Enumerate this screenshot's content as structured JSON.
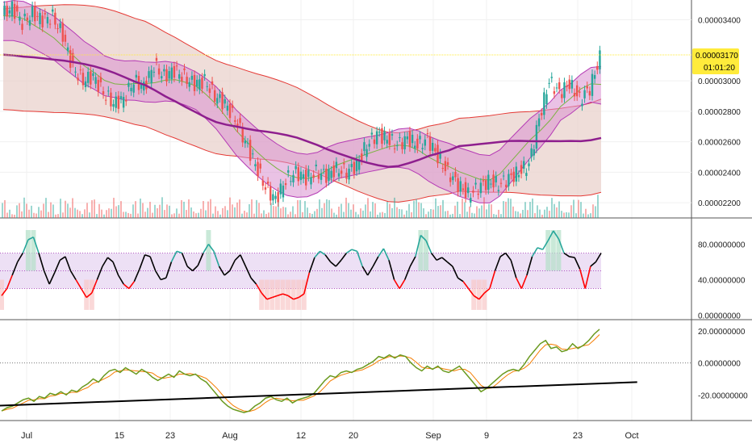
{
  "colors": {
    "up": "#26a69a",
    "down": "#ef5350",
    "ma_purple": "#8e1f8e",
    "bb_outer": "#e53935",
    "bb_outer_fill": "#e8cfc9",
    "bb_inner": "#b53bb5",
    "bb_inner_fill": "#d98fd0",
    "mid_green": "#7cb342",
    "price_line": "#ffeb3b",
    "osc_line": "#000000",
    "osc_low": "#ff0000",
    "osc_high": "#26a69a",
    "osc_band_fill": "#ede0f5",
    "osc_band_line": "#9c27b0",
    "osc_high_highlight": "#b2dfc8",
    "osc_low_highlight": "#f8c8c8",
    "wave_line": "#6a9a1f",
    "wave_signal": "#f57c00",
    "trendline": "#000000",
    "badge": "#ffeb3b",
    "grid": "#f0f0f0",
    "axis_text": "#222222"
  },
  "price_badge": {
    "price": "0.00003170",
    "countdown": "01:01:20"
  },
  "x_axis": {
    "labels": [
      "Jul",
      "15",
      "23",
      "Aug",
      "12",
      "20",
      "Sep",
      "9",
      "23",
      "Oct"
    ]
  },
  "chart_data": [
    {
      "type": "candlestick",
      "pane": "price",
      "ylim": [
        2.1e-05,
        3.53e-05
      ],
      "y_ticks": [
        "0.00003400",
        "0.00003000",
        "0.00002800",
        "0.00002600",
        "0.00002400",
        "0.00002200"
      ],
      "x_range": [
        "Jul",
        "Sep 25"
      ],
      "close_path": [
        [
          0,
          3.43e-05
        ],
        [
          2,
          3.48e-05
        ],
        [
          4,
          3.38e-05
        ],
        [
          6,
          3.44e-05
        ],
        [
          8,
          3.4e-05
        ],
        [
          10,
          3.42e-05
        ],
        [
          12,
          3.3e-05
        ],
        [
          14,
          3.08e-05
        ],
        [
          16,
          3e-05
        ],
        [
          18,
          3.03e-05
        ],
        [
          20,
          2.92e-05
        ],
        [
          22,
          2.85e-05
        ],
        [
          24,
          2.88e-05
        ],
        [
          26,
          3e-05
        ],
        [
          28,
          2.96e-05
        ],
        [
          30,
          3.1e-05
        ],
        [
          32,
          3.03e-05
        ],
        [
          34,
          3.07e-05
        ],
        [
          36,
          3.02e-05
        ],
        [
          38,
          2.98e-05
        ],
        [
          40,
          3e-05
        ],
        [
          42,
          2.9e-05
        ],
        [
          44,
          2.85e-05
        ],
        [
          46,
          2.75e-05
        ],
        [
          48,
          2.6e-05
        ],
        [
          50,
          2.45e-05
        ],
        [
          52,
          2.3e-05
        ],
        [
          54,
          2.22e-05
        ],
        [
          56,
          2.35e-05
        ],
        [
          58,
          2.4e-05
        ],
        [
          60,
          2.36e-05
        ],
        [
          62,
          2.4e-05
        ],
        [
          64,
          2.38e-05
        ],
        [
          66,
          2.42e-05
        ],
        [
          68,
          2.4e-05
        ],
        [
          70,
          2.45e-05
        ],
        [
          72,
          2.58e-05
        ],
        [
          74,
          2.65e-05
        ],
        [
          76,
          2.62e-05
        ],
        [
          78,
          2.58e-05
        ],
        [
          80,
          2.62e-05
        ],
        [
          82,
          2.58e-05
        ],
        [
          84,
          2.62e-05
        ],
        [
          86,
          2.5e-05
        ],
        [
          88,
          2.4e-05
        ],
        [
          90,
          2.32e-05
        ],
        [
          92,
          2.25e-05
        ],
        [
          94,
          2.3e-05
        ],
        [
          96,
          2.34e-05
        ],
        [
          98,
          2.32e-05
        ],
        [
          100,
          2.36e-05
        ],
        [
          102,
          2.4e-05
        ],
        [
          104,
          2.45e-05
        ],
        [
          106,
          2.75e-05
        ],
        [
          108,
          3e-05
        ],
        [
          110,
          2.92e-05
        ],
        [
          112,
          2.98e-05
        ],
        [
          114,
          2.88e-05
        ],
        [
          116,
          2.95e-05
        ],
        [
          118,
          3.15e-05
        ]
      ],
      "volume_bars_hint": "many small red/teal volume bars along bottom of pane"
    },
    {
      "type": "line",
      "pane": "oscillator",
      "ylim": [
        -5,
        105
      ],
      "y_ticks": [
        "80.00000000",
        "40.00000000",
        "0.00000000"
      ],
      "bands": [
        30,
        50,
        70
      ],
      "series": [
        {
          "values": [
            22,
            30,
            45,
            60,
            70,
            85,
            88,
            70,
            50,
            35,
            48,
            62,
            66,
            50,
            40,
            30,
            20,
            25,
            40,
            55,
            65,
            60,
            45,
            35,
            30,
            38,
            52,
            68,
            66,
            50,
            40,
            42,
            60,
            72,
            70,
            55,
            50,
            56,
            70,
            80,
            72,
            55,
            45,
            50,
            62,
            68,
            55,
            42,
            35,
            25,
            18,
            20,
            22,
            24,
            22,
            18,
            20,
            24,
            48,
            65,
            72,
            68,
            60,
            55,
            62,
            70,
            74,
            72,
            55,
            45,
            55,
            66,
            75,
            62,
            40,
            30,
            40,
            55,
            66,
            90,
            84,
            70,
            62,
            65,
            60,
            55,
            42,
            38,
            30,
            22,
            18,
            25,
            30,
            50,
            66,
            70,
            62,
            42,
            30,
            45,
            66,
            76,
            74,
            84,
            95,
            86,
            70,
            66,
            65,
            52,
            30,
            55,
            60,
            70
          ]
        }
      ]
    },
    {
      "type": "line",
      "pane": "momentum",
      "ylim": [
        -36,
        26
      ],
      "y_ticks": [
        "20.00000000",
        "0.00000000",
        "-20.00000000"
      ],
      "series": [
        {
          "values": [
            -30,
            -28,
            -27,
            -25,
            -23,
            -22,
            -24,
            -21,
            -22,
            -19,
            -20,
            -18,
            -20,
            -17,
            -18,
            -15,
            -13,
            -10,
            -12,
            -8,
            -5,
            -4,
            -6,
            -3,
            -5,
            -7,
            -4,
            -6,
            -9,
            -11,
            -9,
            -7,
            -9,
            -5,
            -7,
            -8,
            -7,
            -10,
            -12,
            -16,
            -20,
            -24,
            -27,
            -29,
            -30,
            -31,
            -30,
            -27,
            -25,
            -22,
            -21,
            -23,
            -24,
            -22,
            -25,
            -23,
            -22,
            -21,
            -19,
            -15,
            -11,
            -8,
            -9,
            -6,
            -5,
            -6,
            -4,
            -3,
            -1,
            1,
            4,
            3,
            5,
            3,
            5,
            4,
            0,
            -3,
            -5,
            -2,
            -4,
            -2,
            -5,
            -6,
            -4,
            -2,
            -6,
            -10,
            -14,
            -18,
            -16,
            -13,
            -10,
            -7,
            -5,
            -4,
            -5,
            -1,
            4,
            8,
            12,
            14,
            9,
            10,
            7,
            8,
            12,
            9,
            11,
            14,
            18,
            21
          ]
        }
      ],
      "trendline": [
        [
          -35,
          -31
        ],
        [
          118,
          -12
        ]
      ]
    }
  ]
}
